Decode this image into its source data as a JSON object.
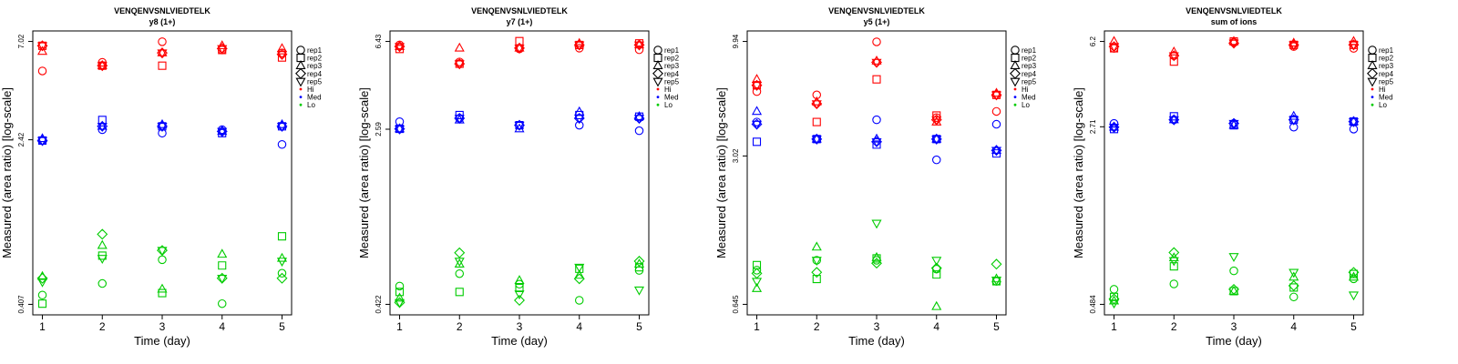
{
  "colors": {
    "Hi": "#ff0000",
    "Med": "#0000ff",
    "Lo": "#00cc00"
  },
  "legend": {
    "reps": [
      {
        "label": "rep1",
        "shape": "circle"
      },
      {
        "label": "rep2",
        "shape": "square"
      },
      {
        "label": "rep3",
        "shape": "triangle-up"
      },
      {
        "label": "rep4",
        "shape": "diamond"
      },
      {
        "label": "rep5",
        "shape": "triangle-down"
      }
    ],
    "groups": [
      {
        "label": "Hi",
        "color": "#ff0000"
      },
      {
        "label": "Med",
        "color": "#0000ff"
      },
      {
        "label": "Lo",
        "color": "#00cc00"
      }
    ]
  },
  "chart_data": [
    {
      "type": "scatter",
      "title": "VENQENVSNLVIEDTELK",
      "subtitle": "y8 (1+)",
      "xlabel": "Time (day)",
      "ylabel": "Measured (area ratio) [log-scale]",
      "x": [
        1,
        2,
        3,
        4,
        5
      ],
      "yscale": "log",
      "ylim": [
        0.407,
        7.02
      ],
      "yticks": [
        {
          "value": 0.407,
          "label": "0.407"
        },
        {
          "value": 2.42,
          "label": "2.42"
        },
        {
          "value": 7.02,
          "label": "7.02"
        }
      ],
      "grid": false,
      "legend_position": "right",
      "series": [
        {
          "group": "Hi",
          "rep": "rep1",
          "values": [
            5.1,
            5.6,
            7.0,
            6.4,
            6.2
          ]
        },
        {
          "group": "Hi",
          "rep": "rep2",
          "values": [
            6.7,
            5.4,
            5.4,
            6.4,
            5.9
          ]
        },
        {
          "group": "Hi",
          "rep": "rep3",
          "values": [
            6.3,
            5.4,
            6.2,
            6.7,
            6.5
          ]
        },
        {
          "group": "Hi",
          "rep": "rep4",
          "values": [
            6.7,
            5.4,
            6.2,
            6.5,
            6.1
          ]
        },
        {
          "group": "Hi",
          "rep": "rep5",
          "values": [
            6.7,
            5.4,
            6.2,
            6.5,
            6.1
          ]
        },
        {
          "group": "Med",
          "rep": "rep1",
          "values": [
            2.4,
            2.7,
            2.6,
            2.7,
            2.3
          ]
        },
        {
          "group": "Med",
          "rep": "rep2",
          "values": [
            2.4,
            3.0,
            2.8,
            2.6,
            2.8
          ]
        },
        {
          "group": "Med",
          "rep": "rep3",
          "values": [
            2.45,
            2.8,
            2.85,
            2.65,
            2.85
          ]
        },
        {
          "group": "Med",
          "rep": "rep4",
          "values": [
            2.4,
            2.8,
            2.8,
            2.65,
            2.8
          ]
        },
        {
          "group": "Med",
          "rep": "rep5",
          "values": [
            2.4,
            2.8,
            2.8,
            2.65,
            2.8
          ]
        },
        {
          "group": "Lo",
          "rep": "rep1",
          "values": [
            0.45,
            0.51,
            0.66,
            0.41,
            0.57
          ]
        },
        {
          "group": "Lo",
          "rep": "rep2",
          "values": [
            0.41,
            0.69,
            0.46,
            0.62,
            0.85
          ]
        },
        {
          "group": "Lo",
          "rep": "rep3",
          "values": [
            0.55,
            0.77,
            0.48,
            0.7,
            0.67
          ]
        },
        {
          "group": "Lo",
          "rep": "rep4",
          "values": [
            0.54,
            0.87,
            0.73,
            0.54,
            0.54
          ]
        },
        {
          "group": "Lo",
          "rep": "rep5",
          "values": [
            0.52,
            0.67,
            0.73,
            0.54,
            0.65
          ]
        }
      ]
    },
    {
      "type": "scatter",
      "title": "VENQENVSNLVIEDTELK",
      "subtitle": "y7 (1+)",
      "xlabel": "Time (day)",
      "ylabel": "Measured (area ratio) [log-scale]",
      "x": [
        1,
        2,
        3,
        4,
        5
      ],
      "yscale": "log",
      "ylim": [
        0.422,
        6.43
      ],
      "yticks": [
        {
          "value": 0.422,
          "label": "0.422"
        },
        {
          "value": 2.59,
          "label": "2.59"
        },
        {
          "value": 6.43,
          "label": "6.43"
        }
      ],
      "grid": false,
      "legend_position": "right",
      "series": [
        {
          "group": "Hi",
          "rep": "rep1",
          "values": [
            6.2,
            5.2,
            5.95,
            6.0,
            5.9
          ]
        },
        {
          "group": "Hi",
          "rep": "rep2",
          "values": [
            5.95,
            5.1,
            6.45,
            6.2,
            6.3
          ]
        },
        {
          "group": "Hi",
          "rep": "rep3",
          "values": [
            6.1,
            6.0,
            6.0,
            6.3,
            6.2
          ]
        },
        {
          "group": "Hi",
          "rep": "rep4",
          "values": [
            6.1,
            5.1,
            6.0,
            6.2,
            6.2
          ]
        },
        {
          "group": "Hi",
          "rep": "rep5",
          "values": [
            6.1,
            5.1,
            6.0,
            6.2,
            6.2
          ]
        },
        {
          "group": "Med",
          "rep": "rep1",
          "values": [
            2.8,
            2.9,
            2.7,
            2.7,
            2.55
          ]
        },
        {
          "group": "Med",
          "rep": "rep2",
          "values": [
            2.6,
            3.0,
            2.7,
            3.0,
            2.95
          ]
        },
        {
          "group": "Med",
          "rep": "rep3",
          "values": [
            2.6,
            2.85,
            2.6,
            3.1,
            2.95
          ]
        },
        {
          "group": "Med",
          "rep": "rep4",
          "values": [
            2.6,
            2.9,
            2.7,
            2.9,
            2.9
          ]
        },
        {
          "group": "Med",
          "rep": "rep5",
          "values": [
            2.6,
            2.9,
            2.7,
            2.9,
            2.9
          ]
        },
        {
          "group": "Lo",
          "rep": "rep1",
          "values": [
            0.51,
            0.58,
            0.52,
            0.44,
            0.6
          ]
        },
        {
          "group": "Lo",
          "rep": "rep2",
          "values": [
            0.48,
            0.48,
            0.5,
            0.61,
            0.62
          ]
        },
        {
          "group": "Lo",
          "rep": "rep3",
          "values": [
            0.45,
            0.64,
            0.54,
            0.57,
            0.64
          ]
        },
        {
          "group": "Lo",
          "rep": "rep4",
          "values": [
            0.43,
            0.72,
            0.44,
            0.55,
            0.66
          ]
        },
        {
          "group": "Lo",
          "rep": "rep5",
          "values": [
            0.43,
            0.66,
            0.47,
            0.62,
            0.49
          ]
        }
      ]
    },
    {
      "type": "scatter",
      "title": "VENQENVSNLVIEDTELK",
      "subtitle": "y5 (1+)",
      "xlabel": "Time (day)",
      "ylabel": "Measured (area ratio) [log-scale]",
      "x": [
        1,
        2,
        3,
        4,
        5
      ],
      "yscale": "log",
      "ylim": [
        0.645,
        9.94
      ],
      "yticks": [
        {
          "value": 0.645,
          "label": "0.645"
        },
        {
          "value": 3.02,
          "label": "3.02"
        },
        {
          "value": 9.94,
          "label": "9.94"
        }
      ],
      "grid": false,
      "legend_position": "right",
      "series": [
        {
          "group": "Hi",
          "rep": "rep1",
          "values": [
            5.9,
            5.7,
            9.9,
            4.5,
            4.8
          ]
        },
        {
          "group": "Hi",
          "rep": "rep2",
          "values": [
            6.3,
            4.3,
            6.7,
            4.6,
            5.7
          ]
        },
        {
          "group": "Hi",
          "rep": "rep3",
          "values": [
            6.7,
            5.3,
            8.1,
            4.3,
            5.8
          ]
        },
        {
          "group": "Hi",
          "rep": "rep4",
          "values": [
            6.3,
            5.2,
            8.0,
            4.4,
            5.7
          ]
        },
        {
          "group": "Hi",
          "rep": "rep5",
          "values": [
            6.3,
            5.2,
            8.0,
            4.4,
            5.7
          ]
        },
        {
          "group": "Med",
          "rep": "rep1",
          "values": [
            4.3,
            3.6,
            4.4,
            2.9,
            4.2
          ]
        },
        {
          "group": "Med",
          "rep": "rep2",
          "values": [
            3.5,
            3.6,
            3.4,
            3.6,
            3.1
          ]
        },
        {
          "group": "Med",
          "rep": "rep3",
          "values": [
            4.8,
            3.6,
            3.6,
            3.6,
            3.2
          ]
        },
        {
          "group": "Med",
          "rep": "rep4",
          "values": [
            4.2,
            3.6,
            3.5,
            3.6,
            3.2
          ]
        },
        {
          "group": "Med",
          "rep": "rep5",
          "values": [
            4.2,
            3.6,
            3.5,
            3.6,
            3.2
          ]
        },
        {
          "group": "Lo",
          "rep": "rep1",
          "values": [
            0.92,
            1.02,
            1.02,
            0.93,
            0.82
          ]
        },
        {
          "group": "Lo",
          "rep": "rep2",
          "values": [
            0.97,
            0.84,
            1.04,
            0.88,
            0.82
          ]
        },
        {
          "group": "Lo",
          "rep": "rep3",
          "values": [
            0.76,
            1.17,
            1.05,
            0.63,
            0.84
          ]
        },
        {
          "group": "Lo",
          "rep": "rep4",
          "values": [
            0.89,
            0.9,
            0.99,
            0.94,
            0.98
          ]
        },
        {
          "group": "Lo",
          "rep": "rep5",
          "values": [
            0.82,
            1.02,
            1.5,
            1.02,
            0.83
          ]
        }
      ]
    },
    {
      "type": "scatter",
      "title": "VENQENVSNLVIEDTELK",
      "subtitle": "sum of ions",
      "xlabel": "Time (day)",
      "ylabel": "Measured (area ratio) [log-scale]",
      "x": [
        1,
        2,
        3,
        4,
        5
      ],
      "yscale": "log",
      "ylim": [
        0.484,
        6.2
      ],
      "yticks": [
        {
          "value": 0.484,
          "label": "0.484"
        },
        {
          "value": 2.71,
          "label": "2.71"
        },
        {
          "value": 6.2,
          "label": "6.2"
        }
      ],
      "grid": false,
      "legend_position": "right",
      "series": [
        {
          "group": "Hi",
          "rep": "rep1",
          "values": [
            5.8,
            5.4,
            6.15,
            5.9,
            5.8
          ]
        },
        {
          "group": "Hi",
          "rep": "rep2",
          "values": [
            5.8,
            5.1,
            6.2,
            6.0,
            6.0
          ]
        },
        {
          "group": "Hi",
          "rep": "rep3",
          "values": [
            6.2,
            5.6,
            6.2,
            6.1,
            6.2
          ]
        },
        {
          "group": "Hi",
          "rep": "rep4",
          "values": [
            5.9,
            5.4,
            6.1,
            6.0,
            6.0
          ]
        },
        {
          "group": "Hi",
          "rep": "rep5",
          "values": [
            5.9,
            5.4,
            6.1,
            6.0,
            6.0
          ]
        },
        {
          "group": "Med",
          "rep": "rep1",
          "values": [
            2.8,
            2.9,
            2.8,
            2.7,
            2.65
          ]
        },
        {
          "group": "Med",
          "rep": "rep2",
          "values": [
            2.65,
            3.0,
            2.75,
            2.9,
            2.85
          ]
        },
        {
          "group": "Med",
          "rep": "rep3",
          "values": [
            2.7,
            2.9,
            2.75,
            3.0,
            2.85
          ]
        },
        {
          "group": "Med",
          "rep": "rep4",
          "values": [
            2.7,
            2.9,
            2.8,
            2.9,
            2.85
          ]
        },
        {
          "group": "Med",
          "rep": "rep5",
          "values": [
            2.7,
            2.9,
            2.8,
            2.9,
            2.85
          ]
        },
        {
          "group": "Lo",
          "rep": "rep1",
          "values": [
            0.56,
            0.59,
            0.67,
            0.52,
            0.62
          ]
        },
        {
          "group": "Lo",
          "rep": "rep2",
          "values": [
            0.52,
            0.7,
            0.55,
            0.57,
            0.65
          ]
        },
        {
          "group": "Lo",
          "rep": "rep3",
          "values": [
            0.5,
            0.76,
            0.55,
            0.63,
            0.63
          ]
        },
        {
          "group": "Lo",
          "rep": "rep4",
          "values": [
            0.51,
            0.8,
            0.56,
            0.58,
            0.66
          ]
        },
        {
          "group": "Lo",
          "rep": "rep5",
          "values": [
            0.49,
            0.74,
            0.77,
            0.66,
            0.53
          ]
        }
      ]
    }
  ]
}
